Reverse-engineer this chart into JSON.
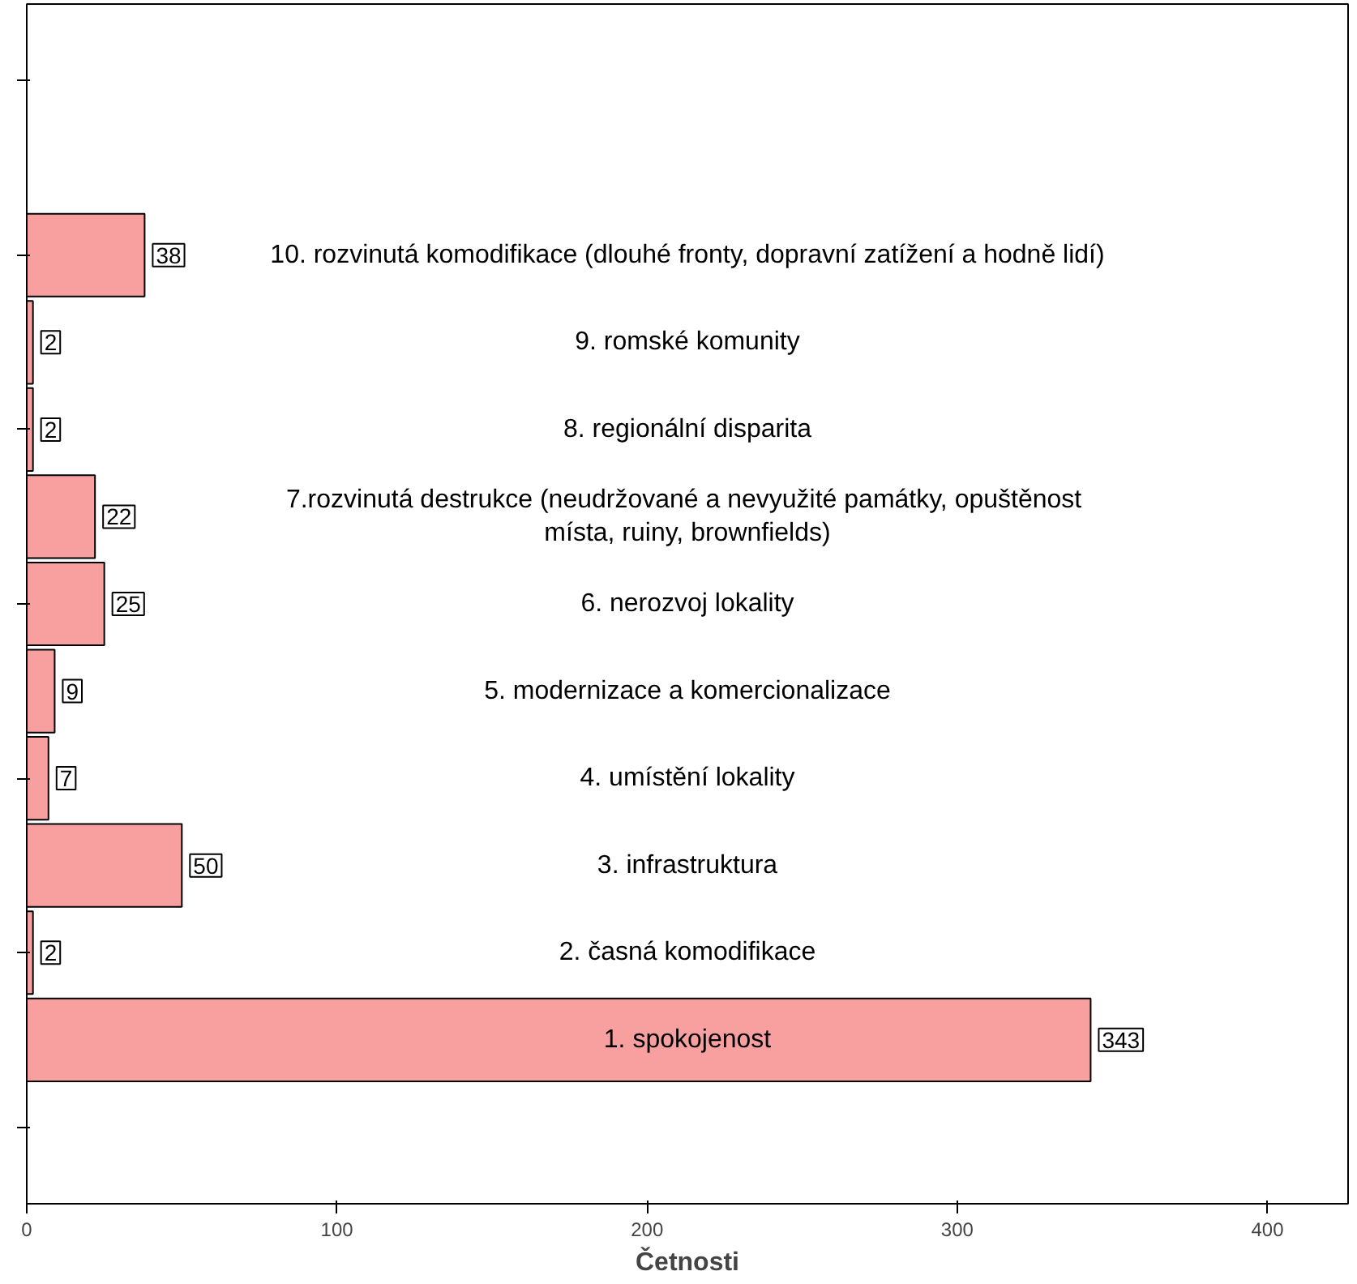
{
  "chart_data": {
    "type": "bar",
    "orientation": "horizontal",
    "xlabel": "Četnosti",
    "categories": [
      "10. rozvinutá komodifikace (dlouhé fronty, dopravní zatížení a hodně lidí)",
      "9. romské komunity",
      "8. regionální disparita",
      "7.rozvinutá destrukce  (neudržované a nevyužité památky, opuštěnost\nmísta, ruiny, brownfields)",
      "6. nerozvoj lokality",
      "5. modernizace a komercionalizace",
      "4. umístění lokality",
      "3. infrastruktura",
      "2. časná komodifikace",
      "1. spokojenost"
    ],
    "values": [
      38,
      2,
      2,
      22,
      25,
      9,
      7,
      50,
      2,
      343
    ],
    "color": "#f8a0a0",
    "xlim": [
      0,
      426
    ],
    "xticks": [
      0,
      100,
      200,
      300,
      400
    ],
    "data_labels": true,
    "grid": false,
    "tick_labels": "x"
  }
}
